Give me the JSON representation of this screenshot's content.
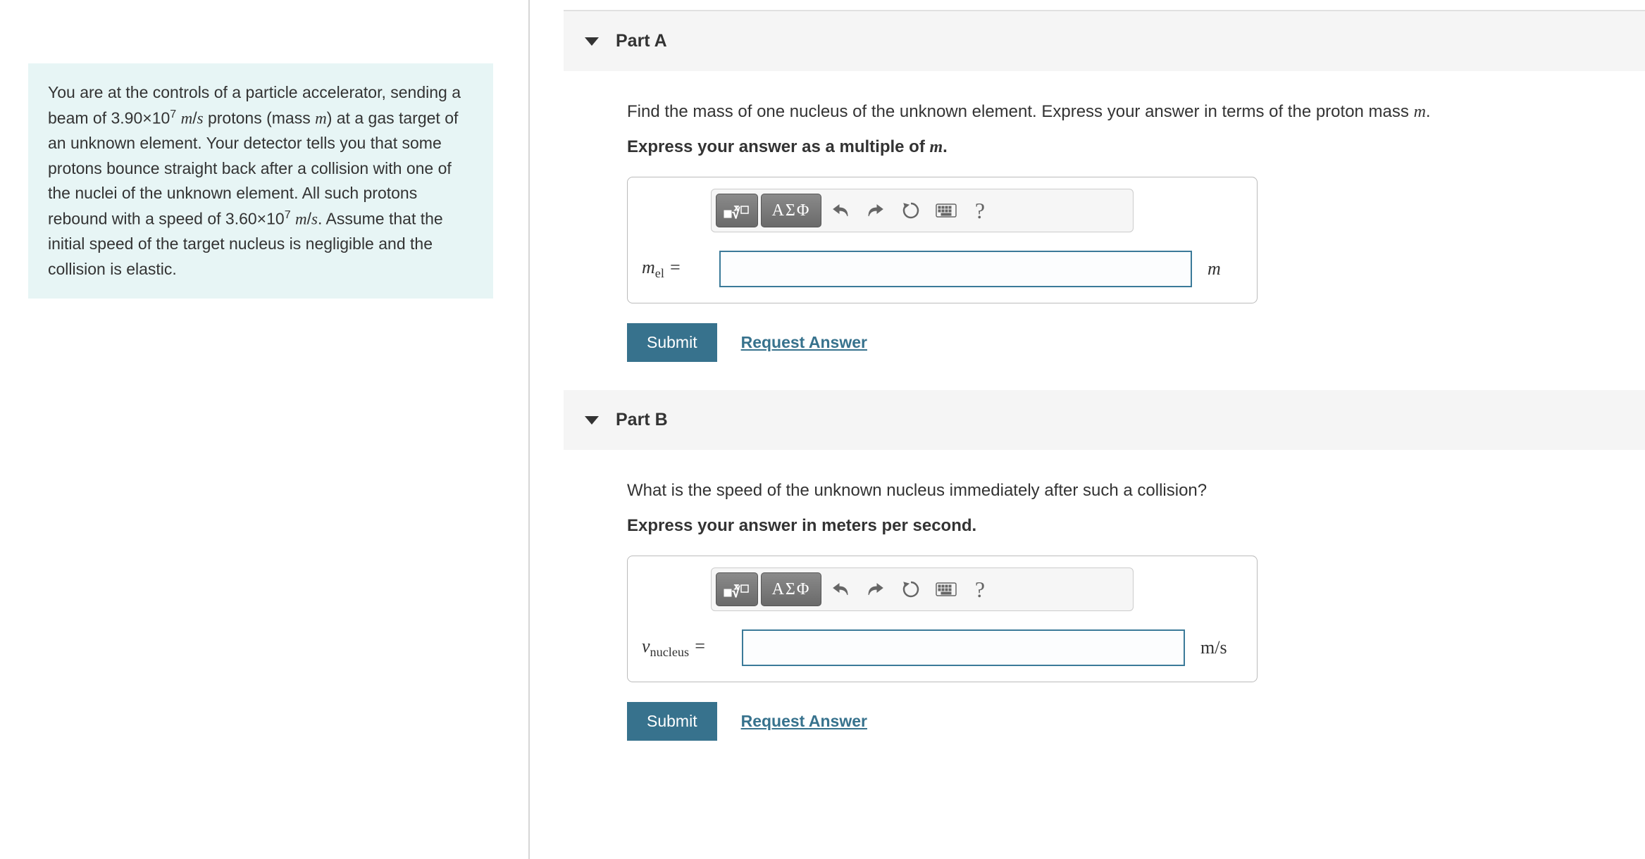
{
  "problem": {
    "text_html": "You are at the controls of a particle accelerator, sending a beam of 3.90×10<span class='number-sup'>7</span> <span class='math-italic'>m</span>/<span class='math-italic'>s</span> protons (mass <span class='math-italic'>m</span>) at a gas target of an unknown element. Your detector tells you that some protons bounce straight back after a collision with one of the nuclei of the unknown element. All such protons rebound with a speed of 3.60×10<span class='number-sup'>7</span> <span class='math-italic'>m</span>/<span class='math-italic'>s</span>. Assume that the initial speed of the target nucleus is negligible and the collision is elastic."
  },
  "parts": {
    "a": {
      "header": "Part A",
      "question_html": "Find the mass of one nucleus of the unknown element. Express your answer in terms of the proton mass <span class='mi'>m</span>.",
      "express_html": "Express your answer as a multiple of <span class='mi'>m</span>.",
      "var_label_html": "<span class='mi'>m</span><span class='sub'>el</span> =",
      "unit_html": "<span class='mi'>m</span>",
      "value": ""
    },
    "b": {
      "header": "Part B",
      "question_html": "What is the speed of the unknown nucleus immediately after such a collision?",
      "express_html": "Express your answer in meters per second.",
      "var_label_html": "<span class='mi'>v</span><span class='subi'>nucleus</span> =",
      "unit_html": "m<span class='slash'>/</span>s",
      "value": ""
    }
  },
  "toolbar": {
    "greek_label": "ΑΣΦ",
    "help_label": "?"
  },
  "buttons": {
    "submit": "Submit",
    "request": "Request Answer"
  },
  "colors": {
    "left_panel_bg": "#e7f5f5",
    "submit_bg": "#37728d",
    "input_border": "#3b7a99",
    "part_header_bg": "#f5f5f5",
    "divider": "#d6d6d6"
  }
}
